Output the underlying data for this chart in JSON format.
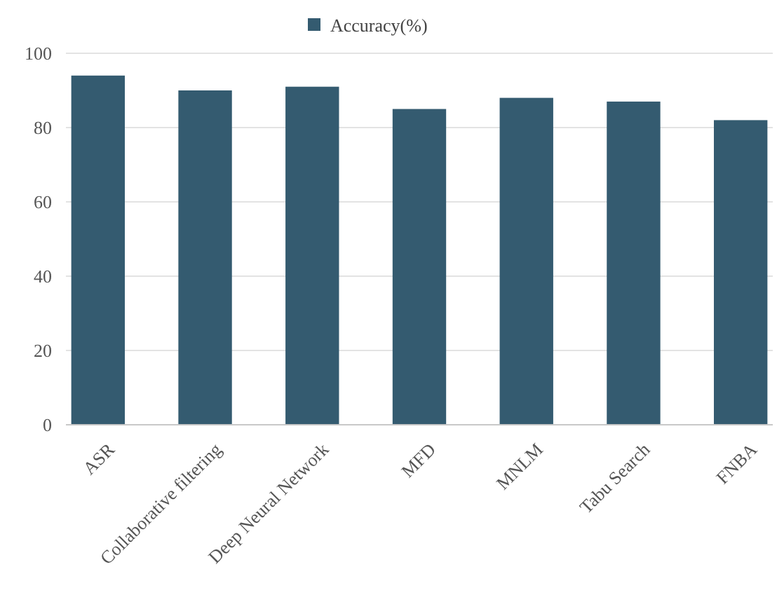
{
  "chart_data": {
    "type": "bar",
    "categories": [
      "ASR",
      "Collaborative filtering",
      "Deep Neural Network",
      "MFD",
      "MNLM",
      "Tabu Search",
      "FNBA"
    ],
    "series": [
      {
        "name": "Accuracy(%)",
        "color": "#345b70",
        "values": [
          94,
          90,
          91,
          85,
          88,
          87,
          82
        ]
      }
    ],
    "ylim": [
      0,
      100
    ],
    "yticks": [
      0,
      20,
      40,
      60,
      80,
      100
    ],
    "grid": "y",
    "legend": "top"
  }
}
